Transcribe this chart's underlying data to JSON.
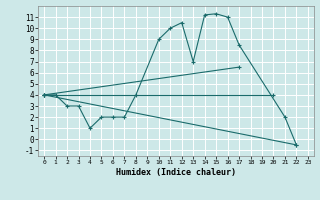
{
  "xlabel": "Humidex (Indice chaleur)",
  "background_color": "#cde8e8",
  "grid_color": "#ffffff",
  "line_color": "#1a6b6b",
  "xlim": [
    -0.5,
    23.5
  ],
  "ylim": [
    -1.5,
    12
  ],
  "xticks": [
    0,
    1,
    2,
    3,
    4,
    5,
    6,
    7,
    8,
    9,
    10,
    11,
    12,
    13,
    14,
    15,
    16,
    17,
    18,
    19,
    20,
    21,
    22,
    23
  ],
  "yticks": [
    -1,
    0,
    1,
    2,
    3,
    4,
    5,
    6,
    7,
    8,
    9,
    10,
    11
  ],
  "curve_main": {
    "x": [
      0,
      1,
      2,
      3,
      4,
      5,
      6,
      7,
      8,
      10,
      11,
      12,
      13,
      14,
      15,
      16,
      17,
      21,
      22
    ],
    "y": [
      4,
      4,
      3,
      3,
      1,
      2,
      2,
      2,
      4,
      9,
      10,
      10.5,
      7,
      11.2,
      11.3,
      11.0,
      8.5,
      2,
      -0.5
    ]
  },
  "curve_upper": {
    "x": [
      0,
      17
    ],
    "y": [
      4,
      6.5
    ]
  },
  "curve_flat": {
    "x": [
      0,
      20
    ],
    "y": [
      4,
      4
    ]
  },
  "curve_diag": {
    "x": [
      0,
      22
    ],
    "y": [
      4,
      -0.5
    ]
  }
}
